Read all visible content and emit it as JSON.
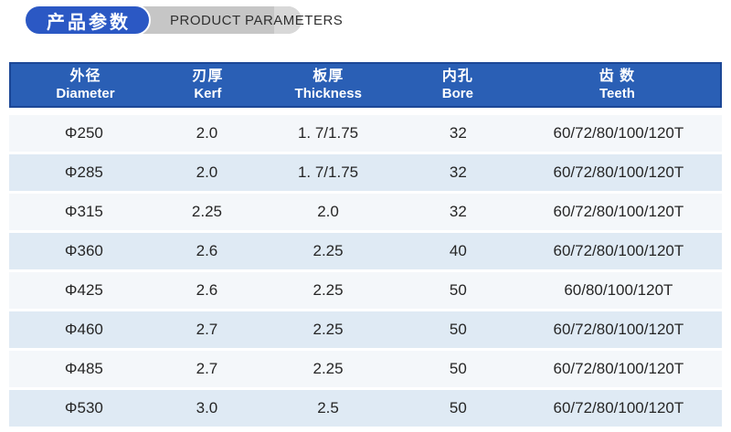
{
  "title": {
    "zh": "产品参数",
    "en": "PRODUCT PARAMETERS"
  },
  "colors": {
    "title_pill_blue": "#2b58c4",
    "title_pill_gray": "#c6c6c6",
    "header_blue": "#2a5fb5",
    "header_border_blue": "#1c4796",
    "row_light": "#f4f7fa",
    "row_alt_blue": "#dfeaf4",
    "cell_text": "#262626"
  },
  "table": {
    "columns": [
      {
        "zh": "外径",
        "en": "Diameter"
      },
      {
        "zh": "刃厚",
        "en": "Kerf"
      },
      {
        "zh": "板厚",
        "en": "Thickness"
      },
      {
        "zh": "内孔",
        "en": "Bore"
      },
      {
        "zh": "齿 数",
        "en": "Teeth"
      }
    ],
    "rows": [
      [
        "Φ250",
        "2.0",
        "1. 7/1.75",
        "32",
        "60/72/80/100/120T"
      ],
      [
        "Φ285",
        "2.0",
        "1. 7/1.75",
        "32",
        "60/72/80/100/120T"
      ],
      [
        "Φ315",
        "2.25",
        "2.0",
        "32",
        "60/72/80/100/120T"
      ],
      [
        "Φ360",
        "2.6",
        "2.25",
        "40",
        "60/72/80/100/120T"
      ],
      [
        "Φ425",
        "2.6",
        "2.25",
        "50",
        "60/80/100/120T"
      ],
      [
        "Φ460",
        "2.7",
        "2.25",
        "50",
        "60/72/80/100/120T"
      ],
      [
        "Φ485",
        "2.7",
        "2.25",
        "50",
        "60/72/80/100/120T"
      ],
      [
        "Φ530",
        "3.0",
        "2.5",
        "50",
        "60/72/80/100/120T"
      ]
    ]
  }
}
